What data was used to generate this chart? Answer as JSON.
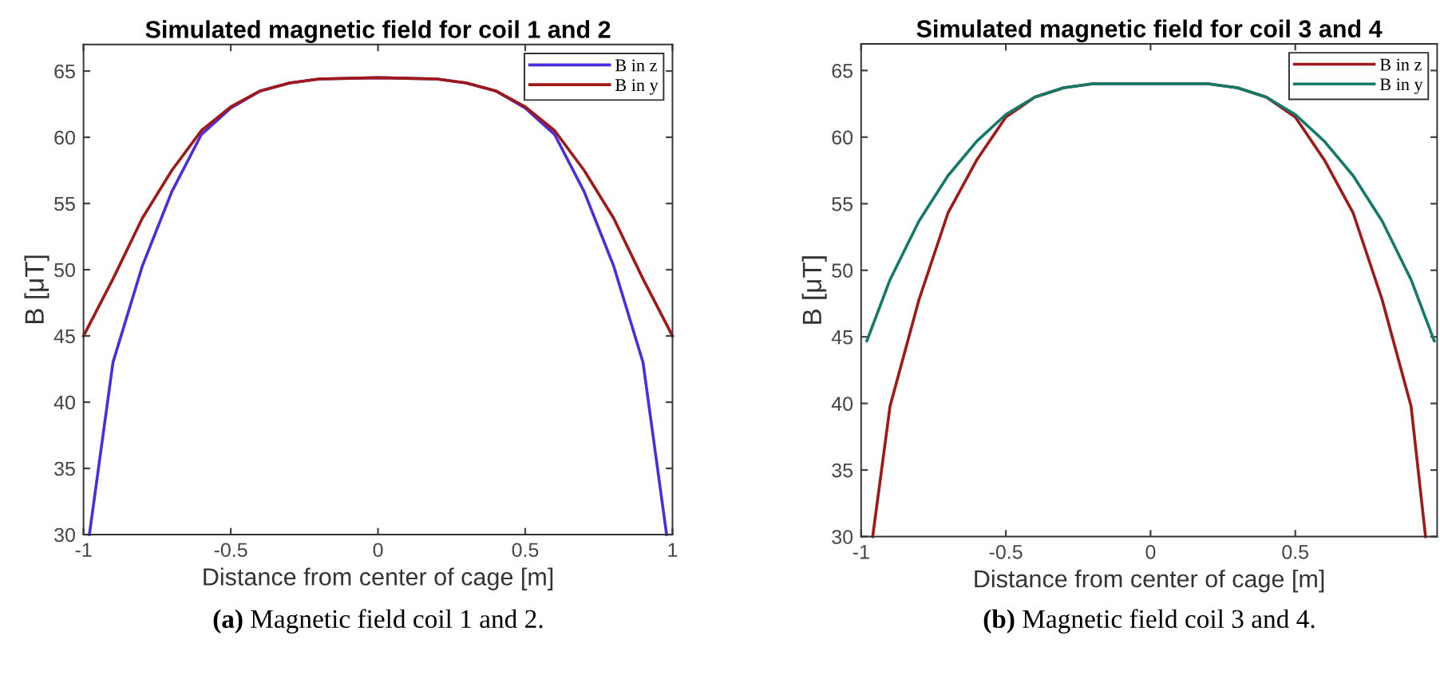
{
  "chart_data": [
    {
      "type": "line",
      "title": "Simulated magnetic field for coil 1 and 2",
      "xlabel": "Distance from center of cage [m]",
      "ylabel": "B [μT]",
      "xlim": [
        -1,
        1
      ],
      "ylim": [
        30,
        67
      ],
      "xticks": [
        -1,
        -0.5,
        0,
        0.5,
        1
      ],
      "yticks": [
        30,
        35,
        40,
        45,
        50,
        55,
        60,
        65
      ],
      "grid": false,
      "legend": "top right",
      "annotations": [
        "(a) Magnetic field coil 1 and 2."
      ],
      "series": [
        {
          "name": "B in z",
          "color": "#4b2de0",
          "x": [
            -0.98,
            -0.9,
            -0.8,
            -0.7,
            -0.6,
            -0.5,
            -0.4,
            -0.3,
            -0.2,
            0,
            0.2,
            0.3,
            0.4,
            0.5,
            0.6,
            0.7,
            0.8,
            0.9,
            0.98
          ],
          "values": [
            30,
            43,
            50.3,
            55.9,
            60.2,
            62.2,
            63.5,
            64.1,
            64.4,
            64.5,
            64.4,
            64.1,
            63.5,
            62.2,
            60.2,
            55.9,
            50.3,
            43,
            30
          ]
        },
        {
          "name": "B in y",
          "color": "#a01818",
          "x": [
            -1,
            -0.9,
            -0.8,
            -0.7,
            -0.6,
            -0.5,
            -0.4,
            -0.3,
            -0.2,
            0,
            0.2,
            0.3,
            0.4,
            0.5,
            0.6,
            0.7,
            0.8,
            0.9,
            1
          ],
          "values": [
            45,
            49.3,
            53.9,
            57.5,
            60.5,
            62.3,
            63.5,
            64.1,
            64.4,
            64.5,
            64.4,
            64.1,
            63.5,
            62.3,
            60.5,
            57.5,
            53.9,
            49.3,
            45
          ]
        }
      ]
    },
    {
      "type": "line",
      "title": "Simulated magnetic field for coil 3 and 4",
      "xlabel": "Distance from center of cage [m]",
      "ylabel": "B [μT]",
      "xlim": [
        -1,
        0.99
      ],
      "ylim": [
        30,
        67
      ],
      "xticks": [
        -1,
        -0.5,
        0,
        0.5
      ],
      "yticks": [
        30,
        35,
        40,
        45,
        50,
        55,
        60,
        65
      ],
      "grid": false,
      "legend": "top right",
      "annotations": [
        "(b) Magnetic field coil 3 and 4."
      ],
      "series": [
        {
          "name": "B in z",
          "color": "#a01818",
          "x": [
            -0.96,
            -0.9,
            -0.8,
            -0.7,
            -0.6,
            -0.5,
            -0.4,
            -0.3,
            -0.2,
            0,
            0.2,
            0.3,
            0.4,
            0.5,
            0.6,
            0.7,
            0.8,
            0.9,
            0.95
          ],
          "values": [
            30,
            39.8,
            47.8,
            54.3,
            58.3,
            61.5,
            63.0,
            63.7,
            64.0,
            64.0,
            64.0,
            63.7,
            63.0,
            61.5,
            58.3,
            54.3,
            47.8,
            39.8,
            30
          ]
        },
        {
          "name": "B in y",
          "color": "#137a68",
          "x": [
            -0.98,
            -0.9,
            -0.8,
            -0.7,
            -0.6,
            -0.5,
            -0.4,
            -0.3,
            -0.2,
            0,
            0.2,
            0.3,
            0.4,
            0.5,
            0.6,
            0.7,
            0.8,
            0.9,
            0.98
          ],
          "values": [
            44.7,
            49.3,
            53.7,
            57.1,
            59.7,
            61.7,
            63.0,
            63.7,
            64.0,
            64.0,
            64.0,
            63.7,
            63.0,
            61.7,
            59.7,
            57.1,
            53.7,
            49.3,
            44.7
          ]
        }
      ]
    }
  ]
}
